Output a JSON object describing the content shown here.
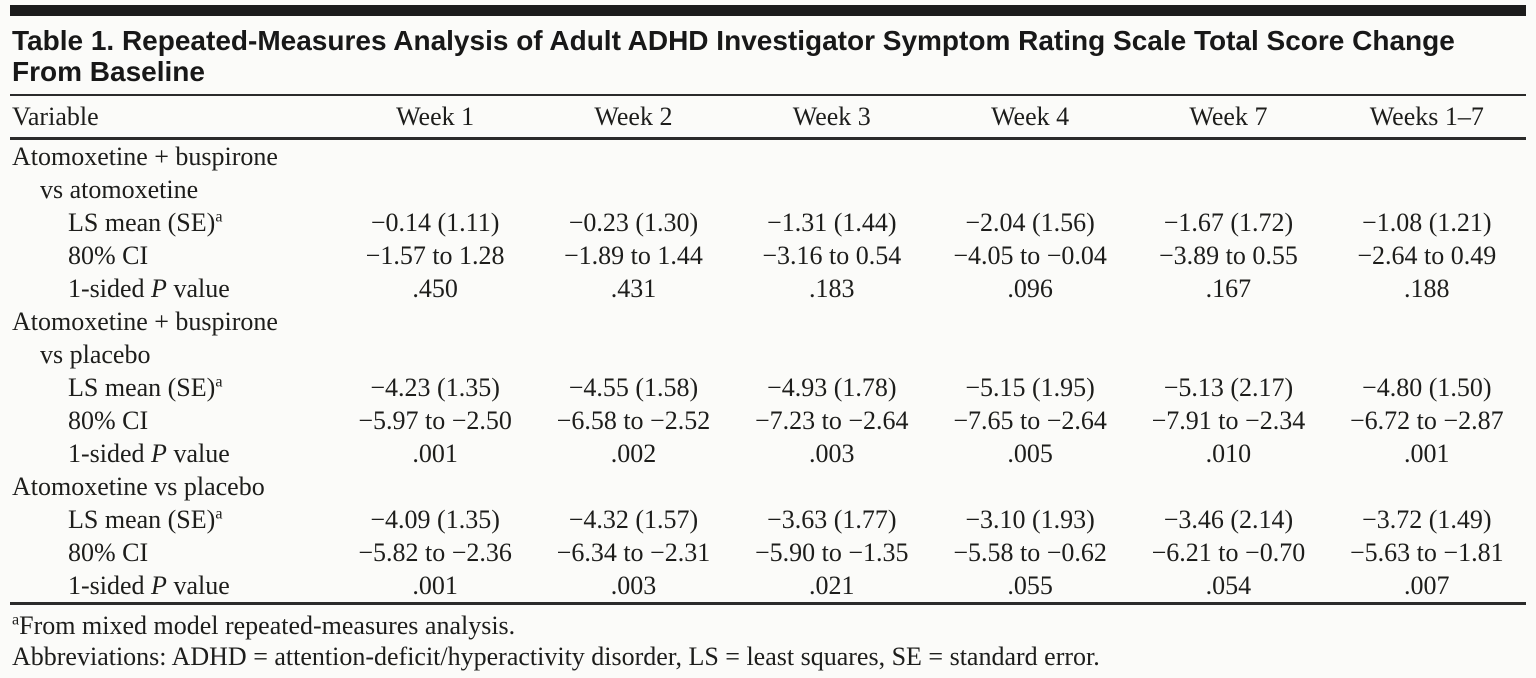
{
  "table": {
    "title": "Table 1. Repeated-Measures Analysis of Adult ADHD Investigator Symptom Rating Scale Total Score Change From Baseline",
    "columns": [
      "Variable",
      "Week 1",
      "Week 2",
      "Week 3",
      "Week 4",
      "Week 7",
      "Weeks 1–7"
    ]
  },
  "row_labels": {
    "ls_text": "LS mean (SE)",
    "ls_sup": "a",
    "ci": "80% CI",
    "p_pre": "1-sided",
    "p_italic": "P",
    "p_post": "value"
  },
  "sections": [
    {
      "label": [
        "Atomoxetine + buspirone",
        "vs atomoxetine"
      ],
      "ls_mean_se": [
        "−0.14 (1.11)",
        "−0.23 (1.30)",
        "−1.31 (1.44)",
        "−2.04 (1.56)",
        "−1.67 (1.72)",
        "−1.08 (1.21)"
      ],
      "ci_80": [
        "−1.57 to 1.28",
        "−1.89 to 1.44",
        "−3.16 to 0.54",
        "−4.05 to −0.04",
        "−3.89 to 0.55",
        "−2.64 to 0.49"
      ],
      "p_1sided": [
        ".450",
        ".431",
        ".183",
        ".096",
        ".167",
        ".188"
      ]
    },
    {
      "label": [
        "Atomoxetine + buspirone",
        "vs placebo"
      ],
      "ls_mean_se": [
        "−4.23 (1.35)",
        "−4.55 (1.58)",
        "−4.93 (1.78)",
        "−5.15 (1.95)",
        "−5.13 (2.17)",
        "−4.80 (1.50)"
      ],
      "ci_80": [
        "−5.97 to −2.50",
        "−6.58 to −2.52",
        "−7.23 to −2.64",
        "−7.65 to −2.64",
        "−7.91 to −2.34",
        "−6.72 to −2.87"
      ],
      "p_1sided": [
        ".001",
        ".002",
        ".003",
        ".005",
        ".010",
        ".001"
      ]
    },
    {
      "label": [
        "Atomoxetine vs placebo"
      ],
      "ls_mean_se": [
        "−4.09 (1.35)",
        "−4.32 (1.57)",
        "−3.63 (1.77)",
        "−3.10 (1.93)",
        "−3.46 (2.14)",
        "−3.72 (1.49)"
      ],
      "ci_80": [
        "−5.82 to −2.36",
        "−6.34 to −2.31",
        "−5.90 to −1.35",
        "−5.58 to −0.62",
        "−6.21 to −0.70",
        "−5.63 to −1.81"
      ],
      "p_1sided": [
        ".001",
        ".003",
        ".021",
        ".055",
        ".054",
        ".007"
      ]
    }
  ],
  "footnotes": {
    "a_sup": "a",
    "a_text": "From mixed model repeated-measures analysis.",
    "abbreviations": "Abbreviations: ADHD = attention-deficit/hyperactivity disorder, LS = least squares, SE = standard error."
  },
  "colors": {
    "rule": "#2b2b2b",
    "top_bar": "#1c1c1c",
    "text": "#1d1d1b",
    "background": "#fbfbf9"
  }
}
